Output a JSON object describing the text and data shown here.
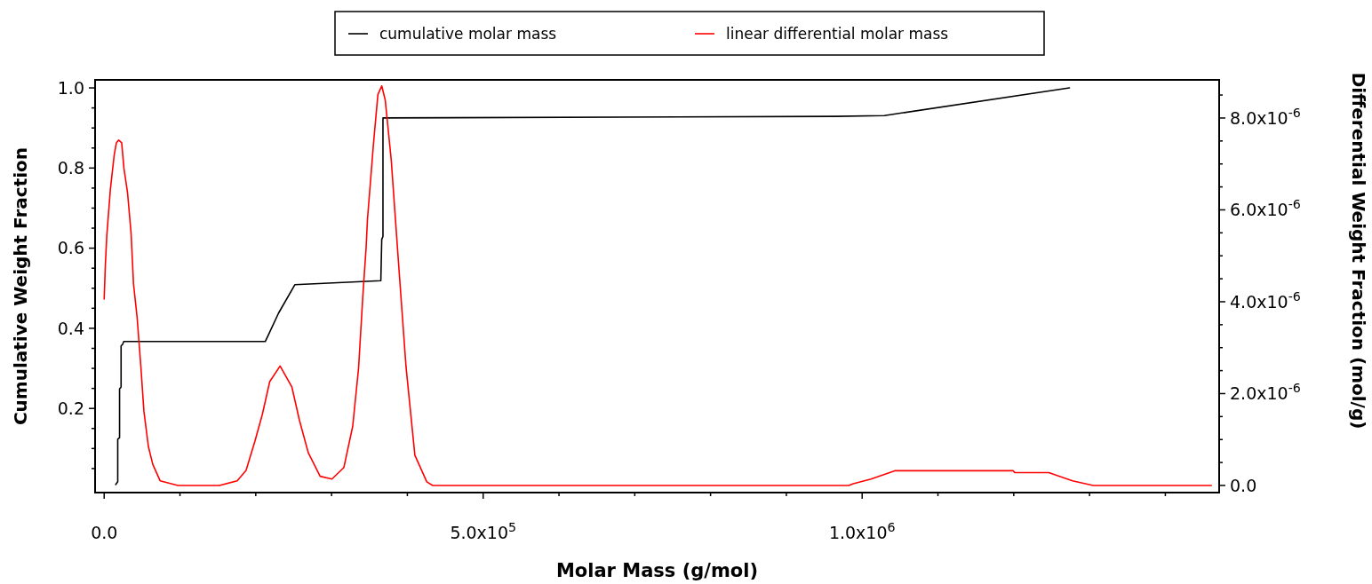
{
  "chart_data": {
    "type": "line",
    "xlabel": "Molar Mass (g/mol)",
    "ylabel": "Cumulative Weight Fraction",
    "y2label": "Differential Weight Fraction (mol/g)",
    "legend": "top",
    "marker": "none",
    "line_style": "solid",
    "grid": false,
    "xlim": [
      -12000,
      1471000
    ],
    "xticks": [
      {
        "value": 0,
        "label": "0.0"
      },
      {
        "value": 100000,
        "label": null
      },
      {
        "value": 200000,
        "label": null
      },
      {
        "value": 300000,
        "label": null
      },
      {
        "value": 400000,
        "label": null
      },
      {
        "value": 500000,
        "label": "5.0x10$^{5}$"
      },
      {
        "value": 600000,
        "label": null
      },
      {
        "value": 700000,
        "label": null
      },
      {
        "value": 800000,
        "label": null
      },
      {
        "value": 900000,
        "label": null
      },
      {
        "value": 1000000,
        "label": "1.0x10$^{6}$"
      },
      {
        "value": 1100000,
        "label": null
      },
      {
        "value": 1200000,
        "label": null
      },
      {
        "value": 1300000,
        "label": null
      },
      {
        "value": 1400000,
        "label": null
      }
    ],
    "ylim": [
      -0.01,
      1.02
    ],
    "yticks": [
      {
        "value": 0.05,
        "label": null
      },
      {
        "value": 0.1,
        "label": null
      },
      {
        "value": 0.15,
        "label": null
      },
      0.2,
      {
        "value": 0.25,
        "label": null
      },
      {
        "value": 0.3,
        "label": null
      },
      {
        "value": 0.35,
        "label": null
      },
      0.4,
      {
        "value": 0.45,
        "label": null
      },
      {
        "value": 0.5,
        "label": null
      },
      {
        "value": 0.55,
        "label": null
      },
      0.6,
      {
        "value": 0.65,
        "label": null
      },
      {
        "value": 0.7,
        "label": null
      },
      {
        "value": 0.75,
        "label": null
      },
      0.8,
      {
        "value": 0.85,
        "label": null
      },
      {
        "value": 0.9,
        "label": null
      },
      {
        "value": 0.95,
        "label": null
      },
      {
        "value": 1,
        "label": "1.0"
      }
    ],
    "y2lim": [
      -1.55e-07,
      8.83e-06
    ],
    "y2ticks": [
      {
        "value": 0,
        "label": "0.0"
      },
      {
        "value": 5e-07,
        "label": null
      },
      {
        "value": 1e-06,
        "label": null
      },
      {
        "value": 1.5e-06,
        "label": null
      },
      {
        "value": 2e-06,
        "label": "2.0x10$^{-6}$"
      },
      {
        "value": 2.5e-06,
        "label": null
      },
      {
        "value": 3e-06,
        "label": null
      },
      {
        "value": 3.5e-06,
        "label": null
      },
      {
        "value": 4e-06,
        "label": "4.0x10$^{-6}$"
      },
      {
        "value": 4.5e-06,
        "label": null
      },
      {
        "value": 5e-06,
        "label": null
      },
      {
        "value": 5.5e-06,
        "label": null
      },
      {
        "value": 6e-06,
        "label": "6.0x10$^{-6}$"
      },
      {
        "value": 6.5e-06,
        "label": null
      },
      {
        "value": 7e-06,
        "label": null
      },
      {
        "value": 7.5e-06,
        "label": null
      },
      {
        "value": 8e-06,
        "label": "8.0x10$^{-6}$"
      },
      {
        "value": 8.5e-06,
        "label": null
      }
    ],
    "series": [
      {
        "name": "cumulative molar mass",
        "color": "#000000",
        "x": [
          15200,
          17900,
          17900,
          20300,
          20300,
          22300,
          22300,
          24300,
          25800,
          212500,
          216500,
          230100,
          251700,
          365000,
          366200,
          367800,
          367800,
          964800,
          1029300,
          1273500
        ],
        "values": [
          0.01,
          0.017,
          0.123,
          0.127,
          0.249,
          0.253,
          0.356,
          0.36,
          0.367,
          0.367,
          0.383,
          0.438,
          0.509,
          0.519,
          0.622,
          0.629,
          0.925,
          0.929,
          0.931,
          1.0
        ]
      },
      {
        "name": "linear differential molar mass",
        "color": "#ff0000",
        "axis": "y2",
        "x": [
          0,
          1500,
          3500,
          8200,
          13200,
          16100,
          19100,
          23100,
          26100,
          30800,
          35500,
          38700,
          43400,
          48400,
          52400,
          58300,
          64100,
          73900,
          97300,
          152000,
          175500,
          187200,
          199000,
          208700,
          218400,
          232100,
          247700,
          257600,
          269300,
          284900,
          300500,
          316200,
          327900,
          335600,
          341500,
          345500,
          347400,
          355200,
          361100,
          366200,
          370800,
          378700,
          388400,
          398200,
          409900,
          425600,
          433400,
          982400,
          988300,
          1011700,
          1043000,
          1199300,
          1201300,
          1246200,
          1277500,
          1304800,
          1460700
        ],
        "values": [
          4.06e-06,
          4.78e-06,
          5.45e-06,
          6.45e-06,
          7.19e-06,
          7.46e-06,
          7.52e-06,
          7.46e-06,
          6.9e-06,
          6.38e-06,
          5.49e-06,
          4.39e-06,
          3.67e-06,
          2.59e-06,
          1.62e-06,
          8.5e-07,
          4.6e-07,
          1e-07,
          0,
          0,
          1e-07,
          3.3e-07,
          9.7e-07,
          1.55e-06,
          2.26e-06,
          2.6e-06,
          2.14e-06,
          1.42e-06,
          7.1e-07,
          2e-07,
          1.4e-07,
          3.9e-07,
          1.29e-06,
          2.55e-06,
          4.19e-06,
          5.16e-06,
          5.8e-06,
          7.42e-06,
          8.51e-06,
          8.7e-06,
          8.39e-06,
          7.09e-06,
          4.83e-06,
          2.59e-06,
          6.6e-07,
          8e-08,
          0,
          0,
          4e-08,
          1.4e-07,
          3.2e-07,
          3.2e-07,
          2.8e-07,
          2.8e-07,
          1e-07,
          0,
          0
        ]
      }
    ]
  }
}
